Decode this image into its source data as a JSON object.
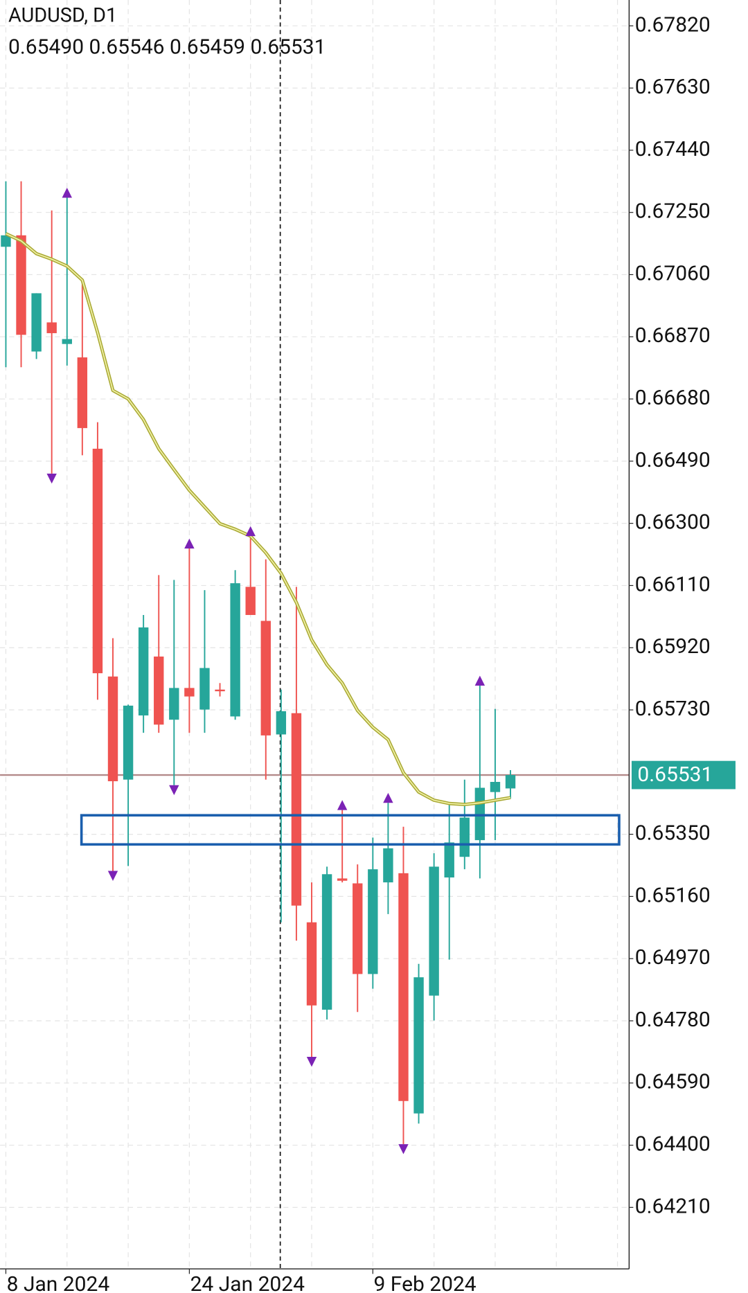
{
  "chart_data": {
    "type": "candlestick",
    "title": "AUDUSD, D1",
    "ohlc_labels": [
      "0.65490",
      "0.65546",
      "0.65459",
      "0.65531"
    ],
    "categories": [
      "8 Jan 2024",
      null,
      null,
      null,
      null,
      null,
      null,
      null,
      null,
      null,
      null,
      null,
      "24 Jan 2024",
      null,
      null,
      null,
      null,
      null,
      null,
      null,
      null,
      null,
      null,
      null,
      "9 Feb 2024",
      null,
      null,
      null,
      null,
      null,
      null,
      null,
      null,
      null
    ],
    "open": [
      0.67145,
      0.6718,
      0.66825,
      0.66914,
      0.66848,
      0.66807,
      0.66528,
      0.65832,
      0.65517,
      0.65713,
      0.65893,
      0.657,
      0.65797,
      0.65731,
      0.65792,
      0.6571,
      0.66106,
      0.66002,
      0.65655,
      0.6572,
      0.65081,
      0.64814,
      0.65215,
      0.652,
      0.64923,
      0.65203,
      0.65231,
      0.64497,
      0.64857,
      0.65218,
      0.65281,
      0.65332,
      0.65479,
      0.6549
    ],
    "high": [
      0.67345,
      0.67345,
      0.67003,
      0.67256,
      0.67295,
      0.67048,
      0.66609,
      0.65949,
      0.65746,
      0.6602,
      0.66142,
      0.66127,
      0.66223,
      0.66096,
      0.65812,
      0.66157,
      0.66261,
      0.6619,
      0.65792,
      0.66106,
      0.65203,
      0.65251,
      0.65424,
      0.65258,
      0.6534,
      0.65446,
      0.65373,
      0.64954,
      0.65292,
      0.65441,
      0.65517,
      0.65804,
      0.65733,
      0.65546
    ],
    "low": [
      0.66777,
      0.66777,
      0.66802,
      0.66452,
      0.66782,
      0.66508,
      0.65761,
      0.65238,
      0.65253,
      0.6566,
      0.6566,
      0.655,
      0.6566,
      0.6566,
      0.65771,
      0.657,
      0.6602,
      0.65517,
      0.65081,
      0.65025,
      0.6467,
      0.64784,
      0.65203,
      0.64807,
      0.64878,
      0.65106,
      0.64403,
      0.64466,
      0.64781,
      0.64967,
      0.65243,
      0.65215,
      0.65332,
      0.65459
    ],
    "close": [
      0.6718,
      0.66876,
      0.67003,
      0.66881,
      0.66863,
      0.66591,
      0.65842,
      0.65512,
      0.65743,
      0.65982,
      0.65685,
      0.65797,
      0.65771,
      0.65858,
      0.65787,
      0.66117,
      0.6602,
      0.65652,
      0.65726,
      0.65132,
      0.64827,
      0.65228,
      0.65208,
      0.64923,
      0.65243,
      0.65307,
      0.64535,
      0.64913,
      0.65251,
      0.65325,
      0.65401,
      0.65492,
      0.6551,
      0.65531
    ],
    "up_color": "#26a69a",
    "down_color": "#ef5350",
    "ma": {
      "color": "#a9a935",
      "values": [
        0.67185,
        0.67163,
        0.67124,
        0.67107,
        0.67086,
        0.67043,
        0.66883,
        0.66706,
        0.6668,
        0.66617,
        0.66528,
        0.66464,
        0.66401,
        0.6635,
        0.66299,
        0.66282,
        0.66261,
        0.6621,
        0.66147,
        0.66058,
        0.65944,
        0.65868,
        0.65812,
        0.65728,
        0.65677,
        0.65639,
        0.65538,
        0.65479,
        0.65454,
        0.65444,
        0.65441,
        0.65446,
        0.65454,
        0.65462
      ]
    },
    "fractals_color": "#7b22b5",
    "fractals_up": [
      null,
      null,
      null,
      null,
      0.67295,
      null,
      null,
      null,
      null,
      null,
      null,
      null,
      0.66223,
      null,
      null,
      null,
      0.66261,
      null,
      null,
      null,
      null,
      null,
      0.65424,
      null,
      null,
      0.65446,
      null,
      null,
      null,
      null,
      null,
      0.65804,
      null,
      null
    ],
    "fractals_down": [
      null,
      null,
      null,
      0.66452,
      null,
      null,
      null,
      0.65238,
      null,
      null,
      null,
      0.655,
      null,
      null,
      null,
      null,
      null,
      null,
      null,
      null,
      0.6467,
      null,
      null,
      null,
      null,
      null,
      0.64403,
      null,
      null,
      null,
      null,
      null,
      null,
      null
    ],
    "zone": {
      "top": 0.65408,
      "bottom": 0.65319,
      "color": "#1b5fae"
    },
    "last_price": 0.65531,
    "last_price_label": "0.65531",
    "last_price_color": "#26a69a",
    "ylim": [
      0.64022,
      0.67899
    ],
    "yticks": [
      {
        "value": 0.6782,
        "label": "0.67820"
      },
      {
        "value": 0.6763,
        "label": "0.67630"
      },
      {
        "value": 0.6744,
        "label": "0.67440"
      },
      {
        "value": 0.6725,
        "label": "0.67250"
      },
      {
        "value": 0.6706,
        "label": "0.67060"
      },
      {
        "value": 0.6687,
        "label": "0.66870"
      },
      {
        "value": 0.6668,
        "label": "0.66680"
      },
      {
        "value": 0.6649,
        "label": "0.66490"
      },
      {
        "value": 0.663,
        "label": "0.66300"
      },
      {
        "value": 0.6611,
        "label": "0.66110"
      },
      {
        "value": 0.6592,
        "label": "0.65920"
      },
      {
        "value": 0.6573,
        "label": "0.65730"
      },
      {
        "value": 0.6535,
        "label": "0.65350"
      },
      {
        "value": 0.6516,
        "label": "0.65160"
      },
      {
        "value": 0.6497,
        "label": "0.64970"
      },
      {
        "value": 0.6478,
        "label": "0.64780"
      },
      {
        "value": 0.6459,
        "label": "0.64590"
      },
      {
        "value": 0.644,
        "label": "0.64400"
      },
      {
        "value": 0.6421,
        "label": "0.64210"
      }
    ],
    "grid": true
  }
}
